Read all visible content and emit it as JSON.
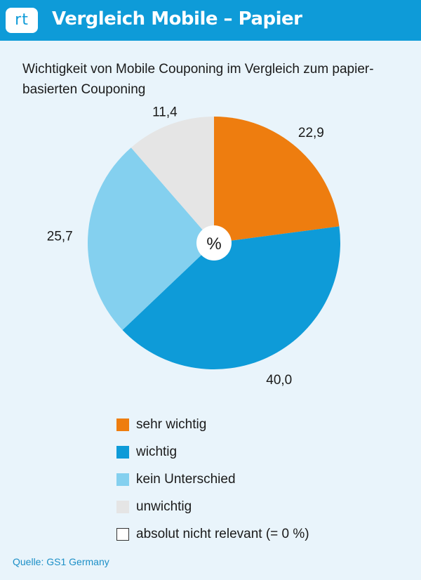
{
  "header": {
    "logo_text": "rt",
    "title": "Vergleich Mobile – Papier"
  },
  "colors": {
    "header_bg": "#0e9bd8",
    "background": "#e9f4fb",
    "source_text": "#1c8fc7"
  },
  "chart_data": {
    "type": "pie",
    "title": "Wichtigkeit von Mobile Couponing im Vergleich zum papier-basierten Couponing",
    "title_lines": [
      "Wichtigkeit von Mobile Couponing im Vergleich zum papier-",
      "basierten Couponing"
    ],
    "center_label": "%",
    "slices": [
      {
        "label": "sehr wichtig",
        "value": 22.9,
        "value_label": "22,9",
        "color": "#ee7d0f"
      },
      {
        "label": "wichtig",
        "value": 40.0,
        "value_label": "40,0",
        "color": "#0e9bd8"
      },
      {
        "label": "kein Unterschied",
        "value": 25.7,
        "value_label": "25,7",
        "color": "#84d0ef"
      },
      {
        "label": "unwichtig",
        "value": 11.4,
        "value_label": "11,4",
        "color": "#e5e5e5"
      }
    ],
    "legend": [
      {
        "label": "sehr wichtig",
        "color": "#ee7d0f"
      },
      {
        "label": "wichtig",
        "color": "#0e9bd8"
      },
      {
        "label": "kein Unterschied",
        "color": "#84d0ef"
      },
      {
        "label": "unwichtig",
        "color": "#e5e5e5"
      },
      {
        "label": "absolut nicht relevant (= 0 %)",
        "color": "#ffffff",
        "value": 0
      }
    ],
    "legend_position": "bottom"
  },
  "source": "Quelle: GS1 Germany"
}
